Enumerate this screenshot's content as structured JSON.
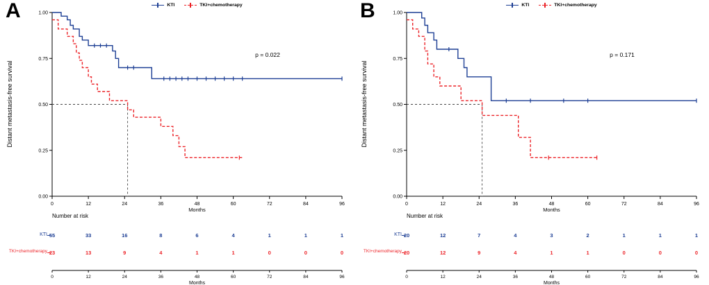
{
  "chart_data": [
    {
      "type": "line",
      "subtype": "kaplan-meier",
      "panel_letter": "A",
      "xlabel": "Months",
      "ylabel": "Distant metastasis-free survival",
      "xlim": [
        0,
        96
      ],
      "ylim": [
        0,
        1
      ],
      "xticks": [
        0,
        12,
        24,
        36,
        48,
        60,
        72,
        84,
        96
      ],
      "yticks": [
        0,
        0.25,
        0.5,
        0.75,
        1
      ],
      "p_value": "p = 0.022",
      "legend_position": "top",
      "grid": false,
      "reference": {
        "x_months": 25,
        "y_survival": 0.5
      },
      "series": [
        {
          "name": "KTI",
          "color": "#1c3e94",
          "line_style": "solid",
          "steps": [
            [
              0,
              1.0
            ],
            [
              3,
              0.98
            ],
            [
              5,
              0.96
            ],
            [
              6,
              0.93
            ],
            [
              7,
              0.91
            ],
            [
              9,
              0.87
            ],
            [
              10,
              0.85
            ],
            [
              12,
              0.82
            ],
            [
              20,
              0.79
            ],
            [
              21,
              0.75
            ],
            [
              22,
              0.7
            ],
            [
              33,
              0.64
            ],
            [
              96,
              0.64
            ]
          ],
          "censors": [
            [
              14,
              0.82
            ],
            [
              16,
              0.82
            ],
            [
              18,
              0.82
            ],
            [
              25,
              0.7
            ],
            [
              27,
              0.7
            ],
            [
              37,
              0.64
            ],
            [
              39,
              0.64
            ],
            [
              41,
              0.64
            ],
            [
              43,
              0.64
            ],
            [
              45,
              0.64
            ],
            [
              48,
              0.64
            ],
            [
              51,
              0.64
            ],
            [
              54,
              0.64
            ],
            [
              57,
              0.64
            ],
            [
              60,
              0.64
            ],
            [
              63,
              0.64
            ],
            [
              96,
              0.64
            ]
          ]
        },
        {
          "name": "TKI+chemotherapy",
          "color": "#ec2227",
          "line_style": "dashed",
          "steps": [
            [
              0,
              0.96
            ],
            [
              2,
              0.91
            ],
            [
              5,
              0.87
            ],
            [
              7,
              0.83
            ],
            [
              8,
              0.78
            ],
            [
              9,
              0.74
            ],
            [
              10,
              0.7
            ],
            [
              12,
              0.65
            ],
            [
              13,
              0.61
            ],
            [
              15,
              0.57
            ],
            [
              19,
              0.52
            ],
            [
              25,
              0.47
            ],
            [
              27,
              0.43
            ],
            [
              36,
              0.38
            ],
            [
              40,
              0.33
            ],
            [
              42,
              0.27
            ],
            [
              44,
              0.21
            ],
            [
              63,
              0.21
            ]
          ],
          "censors": [
            [
              62,
              0.21
            ]
          ]
        }
      ],
      "risk_table": {
        "title": "Number at risk",
        "times": [
          0,
          12,
          24,
          36,
          48,
          60,
          72,
          84,
          96
        ],
        "rows": [
          {
            "name": "KTI",
            "color": "#1c3e94",
            "counts": [
              55,
              33,
              16,
              8,
              6,
              4,
              1,
              1,
              1
            ]
          },
          {
            "name": "TKI+chemotherapy",
            "color": "#ec2227",
            "counts": [
              23,
              13,
              9,
              4,
              1,
              1,
              0,
              0,
              0
            ]
          }
        ]
      }
    },
    {
      "type": "line",
      "subtype": "kaplan-meier",
      "panel_letter": "B",
      "xlabel": "Months",
      "ylabel": "Distant metastasis-free survival",
      "xlim": [
        0,
        96
      ],
      "ylim": [
        0,
        1
      ],
      "xticks": [
        0,
        12,
        24,
        36,
        48,
        60,
        72,
        84,
        96
      ],
      "yticks": [
        0,
        0.25,
        0.5,
        0.75,
        1
      ],
      "p_value": "p = 0.171",
      "legend_position": "top",
      "grid": false,
      "reference": {
        "x_months": 25,
        "y_survival": 0.5
      },
      "series": [
        {
          "name": "KTI",
          "color": "#1c3e94",
          "line_style": "solid",
          "steps": [
            [
              0,
              1.0
            ],
            [
              5,
              0.97
            ],
            [
              6,
              0.93
            ],
            [
              7,
              0.89
            ],
            [
              9,
              0.85
            ],
            [
              10,
              0.8
            ],
            [
              17,
              0.75
            ],
            [
              19,
              0.7
            ],
            [
              20,
              0.65
            ],
            [
              28,
              0.52
            ],
            [
              96,
              0.52
            ]
          ],
          "censors": [
            [
              14,
              0.8
            ],
            [
              33,
              0.52
            ],
            [
              41,
              0.52
            ],
            [
              52,
              0.52
            ],
            [
              60,
              0.52
            ],
            [
              96,
              0.52
            ]
          ]
        },
        {
          "name": "TKI+chemotherapy",
          "color": "#ec2227",
          "line_style": "dashed",
          "steps": [
            [
              0,
              0.96
            ],
            [
              2,
              0.91
            ],
            [
              4,
              0.87
            ],
            [
              6,
              0.79
            ],
            [
              7,
              0.72
            ],
            [
              9,
              0.65
            ],
            [
              11,
              0.6
            ],
            [
              18,
              0.52
            ],
            [
              25,
              0.44
            ],
            [
              37,
              0.32
            ],
            [
              41,
              0.21
            ],
            [
              63,
              0.21
            ]
          ],
          "censors": [
            [
              47,
              0.21
            ],
            [
              63,
              0.21
            ]
          ]
        }
      ],
      "risk_table": {
        "title": "Number at risk",
        "times": [
          0,
          12,
          24,
          36,
          48,
          60,
          72,
          84,
          96
        ],
        "rows": [
          {
            "name": "KTI",
            "color": "#1c3e94",
            "counts": [
              20,
              12,
              7,
              4,
              3,
              2,
              1,
              1,
              1
            ]
          },
          {
            "name": "TKI+chemotherapy",
            "color": "#ec2227",
            "counts": [
              20,
              12,
              9,
              4,
              1,
              1,
              0,
              0,
              0
            ]
          }
        ]
      }
    }
  ]
}
